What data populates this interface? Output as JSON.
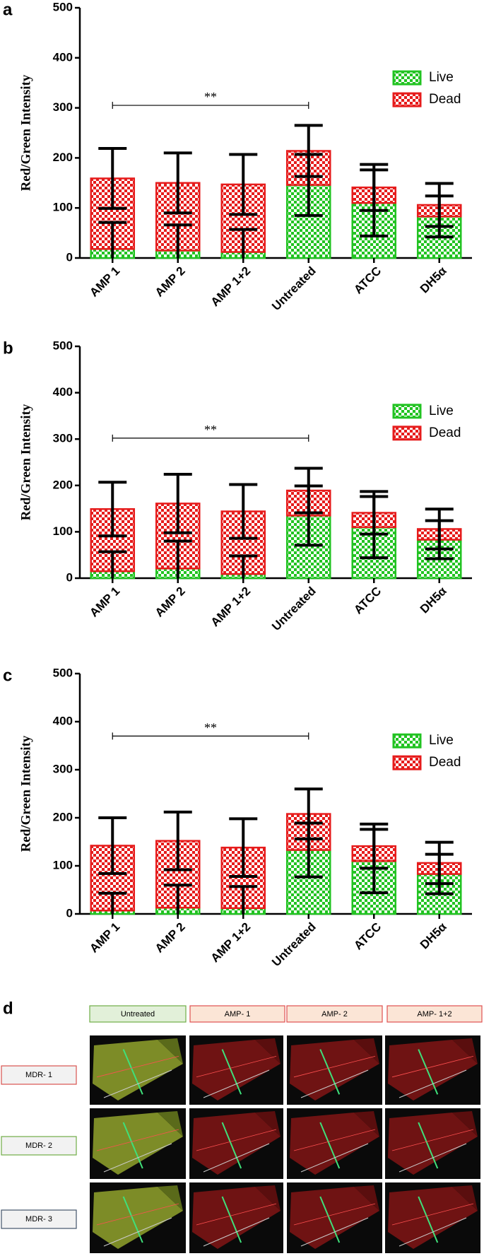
{
  "chart_data": [
    {
      "type": "bar",
      "stacked": true,
      "panel": "a",
      "y_label": "Red/Green Intensity",
      "categories": [
        "AMP 1",
        "AMP 2",
        "AMP 1+2",
        "Untreated",
        "ATCC",
        "DH5α"
      ],
      "series": [
        {
          "name": "Live",
          "color": "#22c322",
          "values": [
            18,
            15,
            12,
            146,
            110,
            83
          ],
          "errors": [
            53,
            51,
            45,
            61,
            66,
            41
          ]
        },
        {
          "name": "Dead",
          "color": "#e61c1c",
          "values": [
            141,
            135,
            135,
            68,
            31,
            23
          ],
          "errors": [
            60,
            60,
            60,
            51,
            46,
            43
          ]
        }
      ],
      "ylim": [
        0,
        500
      ],
      "yticks": [
        0,
        100,
        200,
        300,
        400,
        500
      ],
      "legend": "upper right",
      "annotation": "**",
      "annotation_y": 305
    },
    {
      "type": "bar",
      "stacked": true,
      "panel": "b",
      "y_label": "Red/Green Intensity",
      "categories": [
        "AMP 1",
        "AMP 2",
        "AMP 1+2",
        "Untreated",
        "ATCC",
        "DH5α"
      ],
      "series": [
        {
          "name": "Live",
          "color": "#22c322",
          "values": [
            15,
            21,
            9,
            135,
            110,
            83
          ],
          "errors": [
            42,
            59,
            39,
            64,
            66,
            41
          ]
        },
        {
          "name": "Dead",
          "color": "#e61c1c",
          "values": [
            134,
            140,
            135,
            54,
            31,
            23
          ],
          "errors": [
            58,
            63,
            58,
            48,
            46,
            43
          ]
        }
      ],
      "ylim": [
        0,
        500
      ],
      "yticks": [
        0,
        100,
        200,
        300,
        400,
        500
      ],
      "legend": "upper right",
      "annotation": "**",
      "annotation_y": 302
    },
    {
      "type": "bar",
      "stacked": true,
      "panel": "c",
      "y_label": "Red/Green Intensity",
      "categories": [
        "AMP 1",
        "AMP 2",
        "AMP 1+2",
        "Untreated",
        "ATCC",
        "DH5α"
      ],
      "series": [
        {
          "name": "Live",
          "color": "#22c322",
          "values": [
            7,
            13,
            12,
            133,
            110,
            83
          ],
          "errors": [
            36,
            47,
            45,
            56,
            66,
            41
          ]
        },
        {
          "name": "Dead",
          "color": "#e61c1c",
          "values": [
            135,
            139,
            126,
            75,
            31,
            23
          ],
          "errors": [
            58,
            60,
            60,
            52,
            46,
            43
          ]
        }
      ],
      "ylim": [
        0,
        500
      ],
      "yticks": [
        0,
        100,
        200,
        300,
        400,
        500
      ],
      "legend": "upper right",
      "annotation": "**",
      "annotation_y": 370
    }
  ],
  "panel_d": {
    "label": "d",
    "columns": [
      "Untreated",
      "AMP- 1",
      "AMP- 2",
      "AMP- 1+2"
    ],
    "rows": [
      "MDR- 1",
      "MDR- 2",
      "MDR- 3"
    ]
  }
}
